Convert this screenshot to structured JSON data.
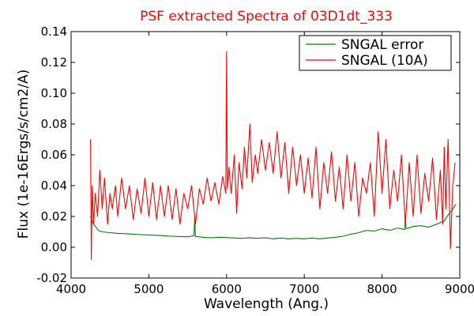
{
  "chart_data": {
    "type": "line",
    "title": "PSF extracted Spectra of 03D1dt_333",
    "title_color": "#ff0000",
    "xlabel": "Wavelength (Ang.)",
    "ylabel": "Flux (1e-16Ergs/s/cm2/A)",
    "xlim": [
      4000,
      9000
    ],
    "ylim": [
      -0.02,
      0.14
    ],
    "xticks": [
      4000,
      5000,
      6000,
      7000,
      8000,
      9000
    ],
    "xtick_labels": [
      "4000",
      "5000",
      "6000",
      "7000",
      "8000",
      "9000"
    ],
    "yticks": [
      -0.02,
      0.0,
      0.02,
      0.04,
      0.06,
      0.08,
      0.1,
      0.12,
      0.14
    ],
    "ytick_labels": [
      "-0.02",
      "0.00",
      "0.02",
      "0.04",
      "0.06",
      "0.08",
      "0.10",
      "0.12",
      "0.14"
    ],
    "grid": false,
    "legend_position": "top-right",
    "series": [
      {
        "name": "SNGAL error",
        "color": "#008000",
        "x": [
          4250,
          4280,
          4320,
          4350,
          4400,
          4500,
          4600,
          4700,
          4800,
          4900,
          5000,
          5100,
          5200,
          5300,
          5400,
          5500,
          5580,
          5590,
          5600,
          5700,
          5800,
          5900,
          6000,
          6100,
          6200,
          6300,
          6400,
          6500,
          6600,
          6700,
          6800,
          6900,
          7000,
          7100,
          7200,
          7300,
          7400,
          7500,
          7600,
          7700,
          7800,
          7900,
          8000,
          8100,
          8200,
          8290,
          8300,
          8310,
          8400,
          8500,
          8600,
          8700,
          8800,
          8850,
          8900,
          8950
        ],
        "y": [
          0.02,
          0.016,
          0.013,
          0.011,
          0.01,
          0.0095,
          0.009,
          0.0088,
          0.0085,
          0.0082,
          0.008,
          0.0078,
          0.0075,
          0.0072,
          0.007,
          0.0068,
          0.0075,
          0.019,
          0.007,
          0.0065,
          0.0062,
          0.0065,
          0.0063,
          0.006,
          0.0058,
          0.0062,
          0.0058,
          0.0062,
          0.0055,
          0.006,
          0.0055,
          0.0058,
          0.0055,
          0.006,
          0.0055,
          0.006,
          0.0065,
          0.0072,
          0.0085,
          0.0095,
          0.011,
          0.0105,
          0.012,
          0.011,
          0.0125,
          0.0115,
          0.019,
          0.012,
          0.0135,
          0.014,
          0.013,
          0.015,
          0.017,
          0.021,
          0.024,
          0.028
        ]
      },
      {
        "name": "SNGAL (10A)",
        "color": "#ff0000",
        "x": [
          4250,
          4260,
          4270,
          4290,
          4310,
          4340,
          4370,
          4400,
          4430,
          4470,
          4500,
          4530,
          4570,
          4600,
          4650,
          4700,
          4750,
          4800,
          4850,
          4900,
          4950,
          5000,
          5050,
          5100,
          5150,
          5200,
          5250,
          5300,
          5350,
          5400,
          5450,
          5500,
          5550,
          5600,
          5650,
          5700,
          5750,
          5800,
          5850,
          5900,
          5950,
          5990,
          6000,
          6010,
          6030,
          6060,
          6100,
          6130,
          6160,
          6200,
          6230,
          6260,
          6300,
          6330,
          6370,
          6400,
          6450,
          6500,
          6550,
          6600,
          6650,
          6700,
          6750,
          6800,
          6850,
          6900,
          6950,
          7000,
          7050,
          7100,
          7150,
          7200,
          7250,
          7300,
          7350,
          7400,
          7450,
          7500,
          7550,
          7600,
          7650,
          7700,
          7750,
          7800,
          7850,
          7900,
          7950,
          8000,
          8050,
          8100,
          8150,
          8200,
          8250,
          8300,
          8350,
          8400,
          8450,
          8500,
          8550,
          8600,
          8650,
          8700,
          8750,
          8780,
          8800,
          8820,
          8850,
          8880,
          8910,
          8940
        ],
        "y": [
          0.07,
          -0.008,
          0.04,
          0.015,
          0.035,
          0.02,
          0.05,
          0.025,
          0.045,
          0.015,
          0.035,
          0.025,
          0.04,
          0.02,
          0.045,
          0.025,
          0.04,
          0.018,
          0.038,
          0.022,
          0.045,
          0.02,
          0.042,
          0.018,
          0.04,
          0.02,
          0.04,
          0.018,
          0.038,
          0.015,
          0.035,
          0.025,
          0.04,
          0.015,
          0.038,
          0.028,
          0.045,
          0.03,
          0.042,
          0.028,
          0.046,
          0.035,
          0.127,
          0.038,
          0.052,
          0.035,
          0.06,
          0.022,
          0.055,
          0.038,
          0.065,
          0.045,
          0.08,
          0.042,
          0.06,
          0.048,
          0.07,
          0.05,
          0.068,
          0.048,
          0.075,
          0.045,
          0.068,
          0.035,
          0.065,
          0.04,
          0.06,
          0.035,
          0.058,
          0.032,
          0.065,
          0.025,
          0.055,
          0.035,
          0.062,
          0.03,
          0.052,
          0.025,
          0.06,
          0.03,
          0.055,
          0.02,
          0.045,
          0.035,
          0.055,
          0.02,
          0.075,
          0.035,
          0.07,
          0.025,
          0.05,
          0.03,
          0.06,
          0.015,
          0.055,
          0.02,
          0.06,
          0.022,
          0.048,
          0.03,
          0.058,
          0.018,
          0.05,
          0.015,
          0.065,
          0.025,
          0.07,
          -0.001,
          0.04,
          0.055
        ]
      }
    ]
  }
}
